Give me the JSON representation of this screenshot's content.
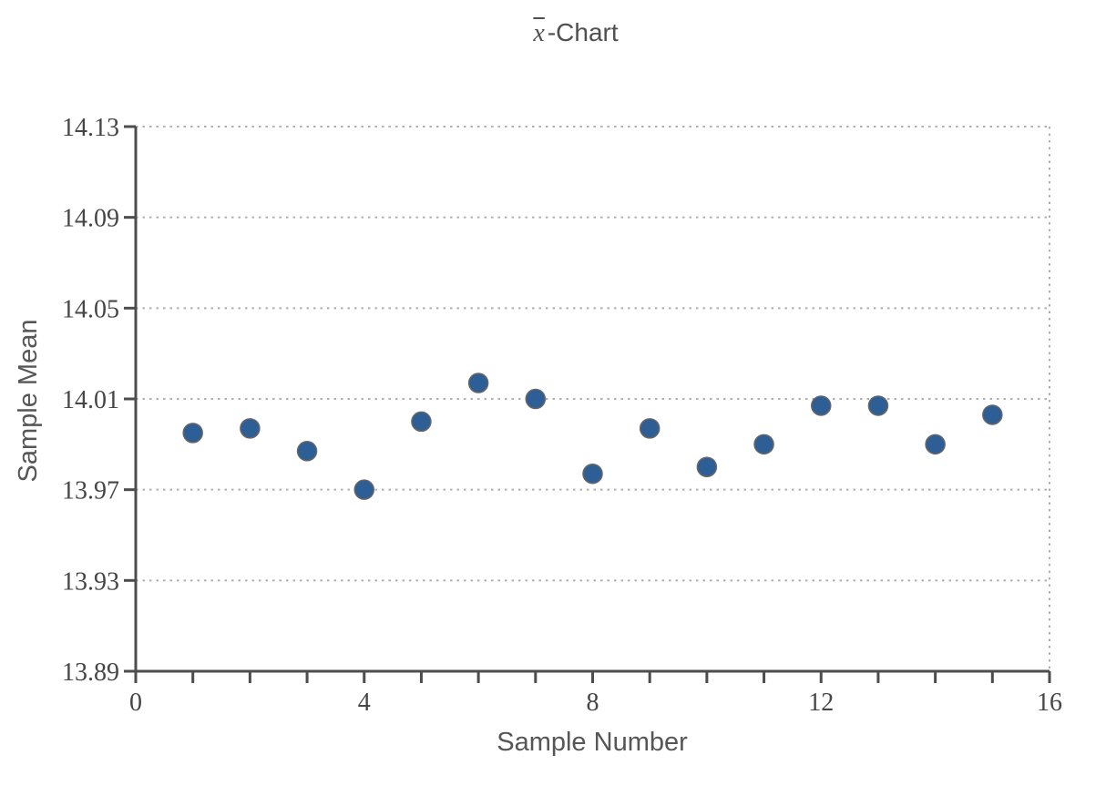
{
  "chart_data": {
    "type": "scatter",
    "title": "x̄-Chart",
    "title_parts": {
      "symbol": "x",
      "suffix": "-Chart"
    },
    "xlabel": "Sample Number",
    "ylabel": "Sample Mean",
    "x": [
      1,
      2,
      3,
      4,
      5,
      6,
      7,
      8,
      9,
      10,
      11,
      12,
      13,
      14,
      15
    ],
    "y": [
      13.995,
      13.997,
      13.987,
      13.97,
      14.0,
      14.017,
      14.01,
      13.977,
      13.997,
      13.98,
      13.99,
      14.007,
      14.007,
      13.99,
      14.003
    ],
    "xlim": [
      0,
      16
    ],
    "ylim": [
      13.89,
      14.13
    ],
    "xticks": [
      0,
      4,
      8,
      12,
      16
    ],
    "xtick_labels": [
      "0",
      "4",
      "8",
      "12",
      "16"
    ],
    "x_minor_step": 1,
    "yticks": [
      13.89,
      13.93,
      13.97,
      14.01,
      14.05,
      14.09,
      14.13
    ],
    "ytick_labels": [
      "13.89",
      "13.93",
      "13.97",
      "14.01",
      "14.05",
      "14.09",
      "14.13"
    ],
    "grid": "horizontal dotted lines at y-ticks; dotted top and right plot border",
    "legend": "none",
    "point_radius_px": 10.5,
    "colors": {
      "point_fill": "#2d5e96",
      "point_stroke": "#666666",
      "axis": "#4d4d4d",
      "grid": "#b0b0b0",
      "tick_text": "#464646",
      "title_text": "#4f4f4f"
    }
  }
}
